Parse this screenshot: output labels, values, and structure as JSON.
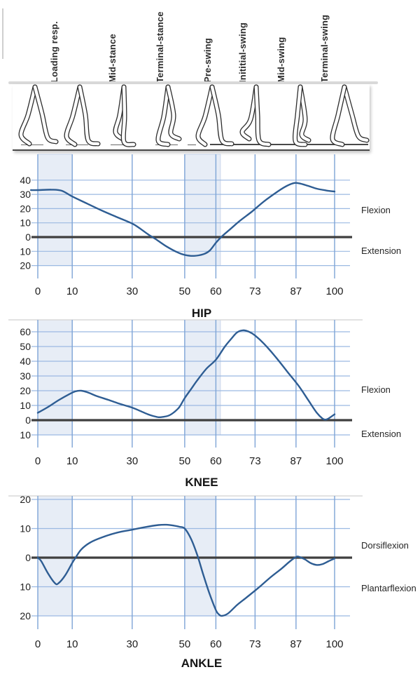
{
  "phase_labels": [
    "Loading resp.",
    "Mid-stance",
    "Terminal-stance",
    "Pre-swing",
    "Inititial-swing",
    "Mid-swing",
    "Terminal-swing"
  ],
  "colors": {
    "curve": "#2e5d93",
    "v_grid": "#7ea4d6",
    "h_grid": "#9bb9e2",
    "zero_axis": "#3f3f3f",
    "band_fill": "#e7edf6",
    "band_edge": "#c9d6ea",
    "text": "#1c1c1c",
    "chart_top_border": "#d8d8d8",
    "figure_ink": "#2d2d2d"
  },
  "chart_data": [
    {
      "type": "line",
      "title": "HIP",
      "upper_label": "Flexion",
      "lower_label": "Extension",
      "x_ticks": [
        0,
        10,
        30,
        50,
        60,
        73,
        87,
        100
      ],
      "xlabel": "",
      "ylabel": "",
      "ylim": [
        -29,
        58
      ],
      "yticks": [
        {
          "v": 40,
          "label": "40"
        },
        {
          "v": 30,
          "label": "30"
        },
        {
          "v": 20,
          "label": "20"
        },
        {
          "v": 10,
          "label": "10"
        },
        {
          "v": 0,
          "label": "0"
        },
        {
          "v": -10,
          "label": "10"
        },
        {
          "v": -20,
          "label": "20"
        }
      ],
      "bands": [
        [
          0,
          10
        ],
        [
          50,
          61.5
        ]
      ],
      "points": [
        [
          -2,
          33
        ],
        [
          0,
          33
        ],
        [
          4,
          33.3
        ],
        [
          7,
          32.5
        ],
        [
          10,
          28.5
        ],
        [
          15,
          23.5
        ],
        [
          20,
          18.5
        ],
        [
          25,
          14
        ],
        [
          30,
          9.5
        ],
        [
          33,
          6
        ],
        [
          36,
          2
        ],
        [
          39,
          -1.5
        ],
        [
          43,
          -6.5
        ],
        [
          47,
          -10.5
        ],
        [
          50,
          -12.5
        ],
        [
          53,
          -13.2
        ],
        [
          56,
          -12
        ],
        [
          58,
          -9.5
        ],
        [
          60,
          -4
        ],
        [
          62,
          0.5
        ],
        [
          65,
          6
        ],
        [
          68,
          11.5
        ],
        [
          72,
          18
        ],
        [
          76,
          25
        ],
        [
          80,
          31
        ],
        [
          83,
          35
        ],
        [
          86,
          37.8
        ],
        [
          88,
          37.8
        ],
        [
          91,
          36
        ],
        [
          94,
          34
        ],
        [
          97,
          32.8
        ],
        [
          100,
          32
        ]
      ]
    },
    {
      "type": "line",
      "title": "KNEE",
      "upper_label": "Flexion",
      "lower_label": "Extension",
      "x_ticks": [
        0,
        10,
        30,
        50,
        60,
        73,
        87,
        100
      ],
      "xlabel": "",
      "ylabel": "",
      "ylim": [
        -18.6,
        68
      ],
      "yticks": [
        {
          "v": 60,
          "label": "60"
        },
        {
          "v": 50,
          "label": "50"
        },
        {
          "v": 40,
          "label": "40"
        },
        {
          "v": 30,
          "label": "30"
        },
        {
          "v": 20,
          "label": "20"
        },
        {
          "v": 10,
          "label": "10"
        },
        {
          "v": 0,
          "label": "0"
        },
        {
          "v": -10,
          "label": "10"
        }
      ],
      "bands": [
        [
          0,
          10
        ],
        [
          50,
          61.5
        ]
      ],
      "points": [
        [
          0,
          5
        ],
        [
          3,
          9
        ],
        [
          6,
          13.5
        ],
        [
          9,
          17.5
        ],
        [
          11,
          19.5
        ],
        [
          13,
          20
        ],
        [
          15,
          19
        ],
        [
          18,
          16.5
        ],
        [
          22,
          13.8
        ],
        [
          26,
          11
        ],
        [
          30,
          8.5
        ],
        [
          33,
          6.3
        ],
        [
          36,
          4
        ],
        [
          38,
          2.8
        ],
        [
          40,
          2
        ],
        [
          42,
          2.3
        ],
        [
          44,
          3.2
        ],
        [
          46,
          5.5
        ],
        [
          48,
          9
        ],
        [
          50,
          15
        ],
        [
          52,
          21
        ],
        [
          54,
          27
        ],
        [
          57,
          35
        ],
        [
          60,
          41
        ],
        [
          63,
          50
        ],
        [
          65,
          55
        ],
        [
          67,
          59.5
        ],
        [
          69,
          61
        ],
        [
          71,
          60
        ],
        [
          73,
          57.5
        ],
        [
          76,
          52
        ],
        [
          80,
          43
        ],
        [
          84,
          33
        ],
        [
          88,
          23
        ],
        [
          91,
          14
        ],
        [
          94,
          5
        ],
        [
          96,
          1
        ],
        [
          97,
          0.4
        ],
        [
          98,
          1.2
        ],
        [
          100,
          4
        ]
      ]
    },
    {
      "type": "line",
      "title": "ANKLE",
      "upper_label": "Dorsiflexion",
      "lower_label": "Plantarflexion",
      "x_ticks": [
        0,
        10,
        30,
        50,
        60,
        73,
        87,
        100
      ],
      "xlabel": "",
      "ylabel": "",
      "ylim": [
        -24.5,
        21.5
      ],
      "yticks": [
        {
          "v": 20,
          "label": "20"
        },
        {
          "v": 10,
          "label": "10"
        },
        {
          "v": 0,
          "label": "0"
        },
        {
          "v": -10,
          "label": "10"
        },
        {
          "v": -20,
          "label": "20"
        }
      ],
      "bands": [
        [
          0,
          10
        ],
        [
          50,
          60
        ]
      ],
      "points": [
        [
          0,
          0
        ],
        [
          1,
          -1.2
        ],
        [
          3,
          -5.5
        ],
        [
          5,
          -8.8
        ],
        [
          6,
          -8.8
        ],
        [
          8,
          -6
        ],
        [
          10,
          -1.8
        ],
        [
          11,
          -0.2
        ],
        [
          13,
          2.8
        ],
        [
          16,
          5.2
        ],
        [
          20,
          7
        ],
        [
          25,
          8.6
        ],
        [
          30,
          9.6
        ],
        [
          35,
          10.5
        ],
        [
          40,
          11.2
        ],
        [
          43,
          11.3
        ],
        [
          46,
          11
        ],
        [
          48,
          10.6
        ],
        [
          50,
          10
        ],
        [
          52,
          6.5
        ],
        [
          54,
          1
        ],
        [
          56,
          -6
        ],
        [
          58,
          -12.5
        ],
        [
          60,
          -18
        ],
        [
          61,
          -19.5
        ],
        [
          62,
          -20
        ],
        [
          64,
          -19.2
        ],
        [
          67,
          -16.3
        ],
        [
          70,
          -13.8
        ],
        [
          74,
          -10.5
        ],
        [
          78,
          -7
        ],
        [
          82,
          -3.8
        ],
        [
          85,
          -1.2
        ],
        [
          87,
          0.2
        ],
        [
          88,
          0.3
        ],
        [
          90,
          -0.6
        ],
        [
          92,
          -1.9
        ],
        [
          94,
          -2.5
        ],
        [
          96,
          -2.2
        ],
        [
          98,
          -1.2
        ],
        [
          100,
          -0.3
        ]
      ]
    }
  ]
}
